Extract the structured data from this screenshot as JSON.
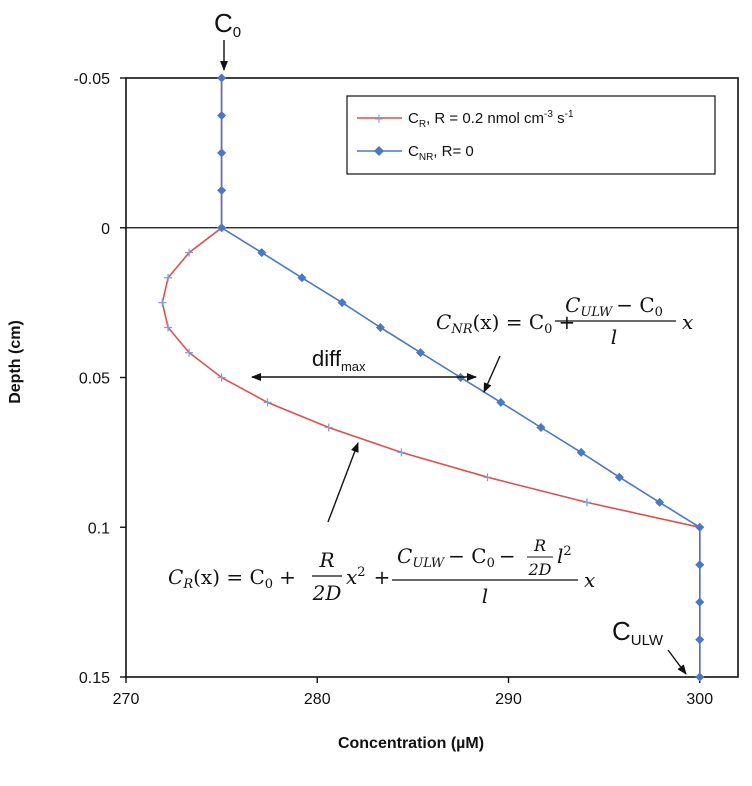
{
  "chart_data": {
    "type": "line",
    "xlabel": "Concentration (µM)",
    "ylabel": "Depth (cm)",
    "xlim": [
      270,
      302
    ],
    "ylim": [
      0.15,
      -0.05
    ],
    "y_inverted": true,
    "x_ticks": [
      270,
      280,
      290,
      300
    ],
    "y_ticks": [
      -0.05,
      0,
      0.05,
      0.1,
      0.15
    ],
    "y_tick_labels": [
      "-0.05",
      "0",
      "0.05",
      "0.1",
      "0.15"
    ],
    "legend_position": "top-right",
    "zero_line": true,
    "series": [
      {
        "name_main": "C",
        "name_sub": "R",
        "name_tail": ", R = 0.2 nmol cm",
        "name_sup1": "-3",
        "name_mid": " s",
        "name_sup2": "-1",
        "color": "#d9534f",
        "marker": "plus",
        "points": [
          {
            "x": 275.0,
            "y": -0.05
          },
          {
            "x": 275.0,
            "y": -0.0375
          },
          {
            "x": 275.0,
            "y": -0.025
          },
          {
            "x": 275.0,
            "y": -0.0125
          },
          {
            "x": 275.0,
            "y": 0.0
          },
          {
            "x": 273.3,
            "y": 0.0083
          },
          {
            "x": 272.2,
            "y": 0.0167
          },
          {
            "x": 271.9,
            "y": 0.025
          },
          {
            "x": 272.2,
            "y": 0.0333
          },
          {
            "x": 273.3,
            "y": 0.0417
          },
          {
            "x": 275.0,
            "y": 0.05
          },
          {
            "x": 277.4,
            "y": 0.0583
          },
          {
            "x": 280.6,
            "y": 0.0667
          },
          {
            "x": 284.4,
            "y": 0.075
          },
          {
            "x": 288.9,
            "y": 0.0833
          },
          {
            "x": 294.1,
            "y": 0.0917
          },
          {
            "x": 300.0,
            "y": 0.1
          },
          {
            "x": 300.0,
            "y": 0.1125
          },
          {
            "x": 300.0,
            "y": 0.125
          },
          {
            "x": 300.0,
            "y": 0.1375
          },
          {
            "x": 300.0,
            "y": 0.15
          }
        ]
      },
      {
        "name_main": "C",
        "name_sub": "NR",
        "name_tail": ", R= 0",
        "color": "#4a78c2",
        "marker": "diamond",
        "points": [
          {
            "x": 275.0,
            "y": -0.05
          },
          {
            "x": 275.0,
            "y": -0.0375
          },
          {
            "x": 275.0,
            "y": -0.025
          },
          {
            "x": 275.0,
            "y": -0.0125
          },
          {
            "x": 275.0,
            "y": 0.0
          },
          {
            "x": 277.1,
            "y": 0.0083
          },
          {
            "x": 279.2,
            "y": 0.0167
          },
          {
            "x": 281.3,
            "y": 0.025
          },
          {
            "x": 283.3,
            "y": 0.0333
          },
          {
            "x": 285.4,
            "y": 0.0417
          },
          {
            "x": 287.5,
            "y": 0.05
          },
          {
            "x": 289.6,
            "y": 0.0583
          },
          {
            "x": 291.7,
            "y": 0.0667
          },
          {
            "x": 293.8,
            "y": 0.075
          },
          {
            "x": 295.8,
            "y": 0.0833
          },
          {
            "x": 297.9,
            "y": 0.0917
          },
          {
            "x": 300.0,
            "y": 0.1
          },
          {
            "x": 300.0,
            "y": 0.1125
          },
          {
            "x": 300.0,
            "y": 0.125
          },
          {
            "x": 300.0,
            "y": 0.1375
          },
          {
            "x": 300.0,
            "y": 0.15
          }
        ]
      }
    ],
    "annotations": {
      "c0_main": "C",
      "c0_sub": "0",
      "culw_main": "C",
      "culw_sub": "ULW",
      "diff_main": "diff",
      "diff_sub": "max",
      "eq_nr": {
        "lhs": "C",
        "lhs_sub": "NR",
        "arg": "(x) = C",
        "c0_sub": "0",
        "plus": "+",
        "num_c": "C",
        "num_c_sub": "ULW",
        "num_minus": "− C",
        "num_c0_sub": "0",
        "den": "l",
        "tail": "x"
      },
      "eq_r": {
        "lhs": "C",
        "lhs_sub": "R",
        "arg": "(x) = C",
        "c0_sub": "0",
        "plus1": "+",
        "f1_num": "R",
        "f1_den": "2D",
        "x2": "x",
        "x2_sup": "2",
        "plus2": "+",
        "num_c": "C",
        "num_c_sub": "ULW",
        "num_minus": "− C",
        "num_c0_sub": "0",
        "num_minus2": "−",
        "f2_num": "R",
        "f2_den": "2D",
        "l2": "l",
        "l2_sup": "2",
        "den": "l",
        "tail": "x"
      }
    }
  }
}
